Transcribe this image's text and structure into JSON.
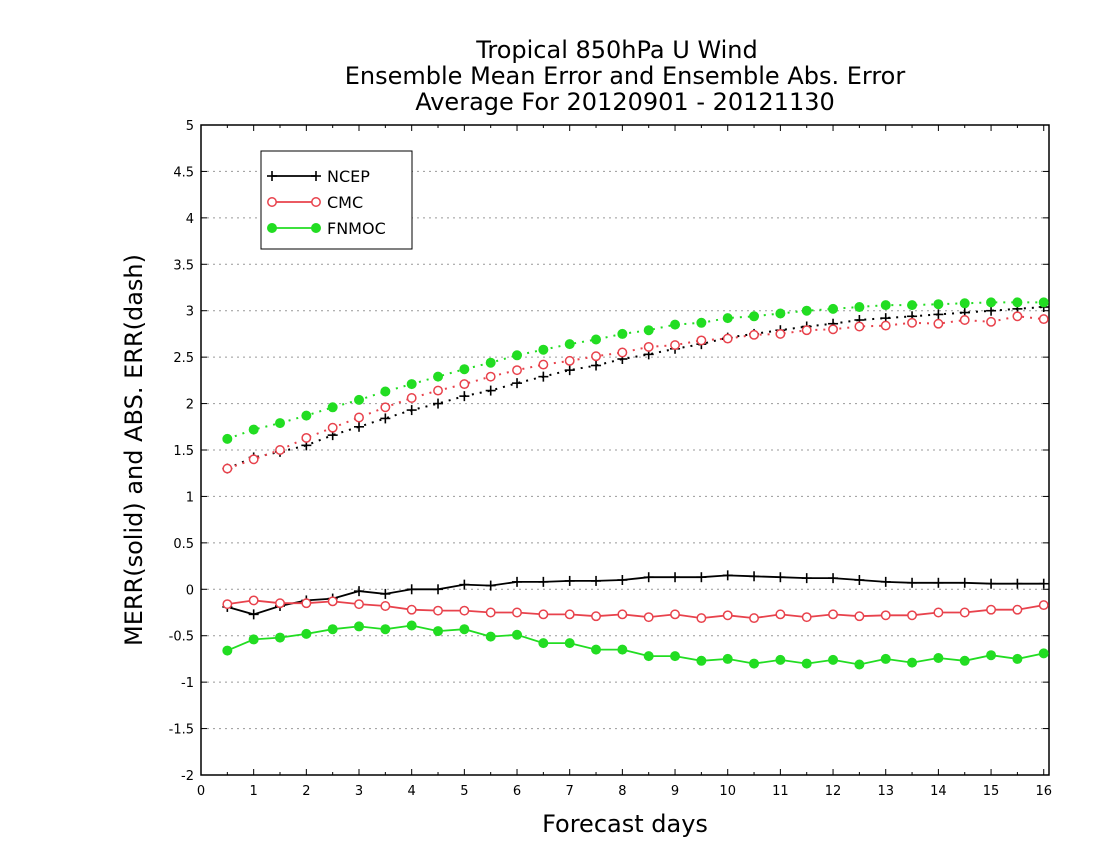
{
  "chart_data": {
    "type": "line",
    "title": [
      "Tropical 850hPa U Wind",
      "Ensemble Mean Error and Ensemble Abs. Error",
      "Average For 20120901 - 20121130"
    ],
    "xlabel": "Forecast days",
    "ylabel": "MERR(solid) and ABS. ERR(dash)",
    "xlim": [
      0,
      16.1
    ],
    "ylim": [
      -2,
      5
    ],
    "x_ticks": [
      "0",
      "1",
      "2",
      "3",
      "4",
      "5",
      "6",
      "7",
      "8",
      "9",
      "10",
      "11",
      "12",
      "13",
      "14",
      "15",
      "16"
    ],
    "y_ticks": [
      "-2",
      "-1.5",
      "-1",
      "-0.5",
      "0",
      "0.5",
      "1",
      "1.5",
      "2",
      "2.5",
      "3",
      "3.5",
      "4",
      "4.5",
      "5"
    ],
    "grid": "horizontal dotted",
    "legend_position": "top-left",
    "x": [
      0.5,
      1,
      1.5,
      2,
      2.5,
      3,
      3.5,
      4,
      4.5,
      5,
      5.5,
      6,
      6.5,
      7,
      7.5,
      8,
      8.5,
      9,
      9.5,
      10,
      10.5,
      11,
      11.5,
      12,
      12.5,
      13,
      13.5,
      14,
      14.5,
      15,
      15.5,
      16
    ],
    "series": [
      {
        "name": "NCEP",
        "color": "#000000",
        "marker": "plus",
        "merr": [
          -0.19,
          -0.27,
          -0.18,
          -0.12,
          -0.1,
          -0.02,
          -0.05,
          0.0,
          0.0,
          0.05,
          0.04,
          0.08,
          0.08,
          0.09,
          0.09,
          0.1,
          0.13,
          0.13,
          0.13,
          0.15,
          0.14,
          0.13,
          0.12,
          0.12,
          0.1,
          0.08,
          0.07,
          0.07,
          0.07,
          0.06,
          0.06,
          0.06
        ],
        "abs_err": [
          1.3,
          1.42,
          1.48,
          1.55,
          1.66,
          1.75,
          1.84,
          1.93,
          2.0,
          2.08,
          2.14,
          2.22,
          2.29,
          2.36,
          2.41,
          2.48,
          2.53,
          2.59,
          2.64,
          2.71,
          2.75,
          2.79,
          2.83,
          2.86,
          2.9,
          2.92,
          2.94,
          2.96,
          2.98,
          3.0,
          3.02,
          3.04
        ]
      },
      {
        "name": "CMC",
        "color": "#e8424c",
        "marker": "open-circle",
        "merr": [
          -0.16,
          -0.12,
          -0.15,
          -0.15,
          -0.13,
          -0.16,
          -0.18,
          -0.22,
          -0.23,
          -0.23,
          -0.25,
          -0.25,
          -0.27,
          -0.27,
          -0.29,
          -0.27,
          -0.3,
          -0.27,
          -0.31,
          -0.28,
          -0.31,
          -0.27,
          -0.3,
          -0.27,
          -0.29,
          -0.28,
          -0.28,
          -0.25,
          -0.25,
          -0.22,
          -0.22,
          -0.17
        ],
        "abs_err": [
          1.3,
          1.4,
          1.5,
          1.63,
          1.74,
          1.85,
          1.96,
          2.06,
          2.14,
          2.21,
          2.29,
          2.36,
          2.42,
          2.46,
          2.51,
          2.55,
          2.61,
          2.63,
          2.68,
          2.7,
          2.74,
          2.75,
          2.79,
          2.8,
          2.83,
          2.84,
          2.87,
          2.86,
          2.9,
          2.88,
          2.94,
          2.91
        ]
      },
      {
        "name": "FNMOC",
        "color": "#22dd22",
        "marker": "filled-circle",
        "merr": [
          -0.66,
          -0.54,
          -0.52,
          -0.48,
          -0.43,
          -0.4,
          -0.43,
          -0.39,
          -0.45,
          -0.43,
          -0.51,
          -0.49,
          -0.58,
          -0.58,
          -0.65,
          -0.65,
          -0.72,
          -0.72,
          -0.77,
          -0.75,
          -0.8,
          -0.76,
          -0.8,
          -0.76,
          -0.81,
          -0.75,
          -0.79,
          -0.74,
          -0.77,
          -0.71,
          -0.75,
          -0.69
        ],
        "abs_err": [
          1.62,
          1.72,
          1.79,
          1.87,
          1.96,
          2.04,
          2.13,
          2.21,
          2.29,
          2.37,
          2.44,
          2.52,
          2.58,
          2.64,
          2.69,
          2.75,
          2.79,
          2.85,
          2.87,
          2.92,
          2.94,
          2.97,
          3.0,
          3.02,
          3.04,
          3.06,
          3.06,
          3.07,
          3.08,
          3.09,
          3.09,
          3.09
        ]
      }
    ]
  }
}
